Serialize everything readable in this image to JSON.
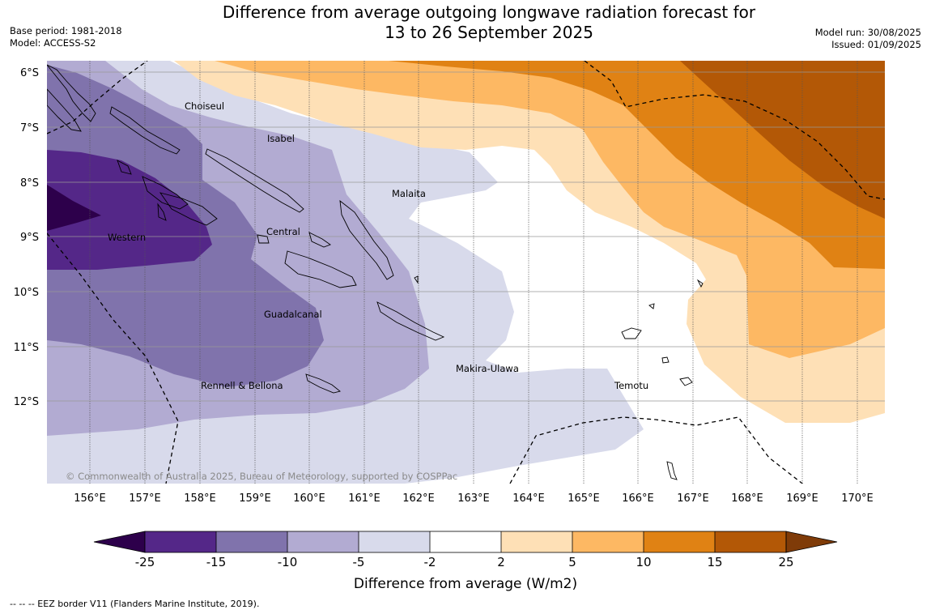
{
  "title_line1": "Difference from average outgoing longwave radiation forecast for",
  "title_line2": "13 to 26 September 2025",
  "base_period": "Base period: 1981-2018",
  "model": "Model: ACCESS-S2",
  "model_run": "Model run: 30/08/2025",
  "issued": "Issued: 01/09/2025",
  "copyright": "© Commonwealth of Australia 2025, Bureau of Meteorology, supported by COSPPac",
  "footnote": "--  --  -- EEZ border V11 (Flanders Marine Institute, 2019).",
  "lat_labels": [
    "6°S",
    "7°S",
    "8°S",
    "9°S",
    "10°S",
    "11°S",
    "12°S"
  ],
  "lon_labels": [
    "156°E",
    "157°E",
    "158°E",
    "159°E",
    "160°E",
    "161°E",
    "162°E",
    "163°E",
    "164°E",
    "165°E",
    "166°E",
    "167°E",
    "168°E",
    "169°E",
    "170°E"
  ],
  "provinces": {
    "choiseul": "Choiseul",
    "isabel": "Isabel",
    "malaita": "Malaita",
    "central": "Central",
    "western": "Western",
    "guadalcanal": "Guadalcanal",
    "makira": "Makira-Ulawa",
    "rennell": "Rennell & Bellona",
    "temotu": "Temotu"
  },
  "colorbar": {
    "title": "Difference from average (W/m2)",
    "ticks": [
      "-25",
      "-15",
      "-10",
      "-5",
      "-2",
      "2",
      "5",
      "10",
      "15",
      "25"
    ],
    "colors": [
      "#2d004b",
      "#542788",
      "#8073ac",
      "#b2abd2",
      "#d8daeb",
      "#ffffff",
      "#fee0b6",
      "#fdb863",
      "#e08214",
      "#b35806",
      "#7f3b08"
    ]
  }
}
